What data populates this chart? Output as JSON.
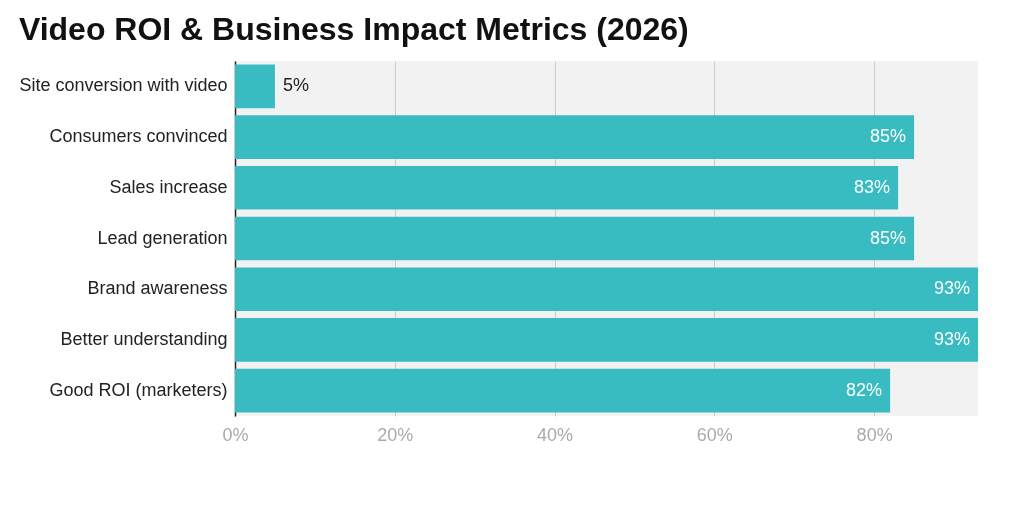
{
  "chart_data": {
    "type": "bar",
    "orientation": "horizontal",
    "title": "Video ROI & Business Impact Metrics (2026)",
    "categories": [
      "Site conversion with video",
      "Consumers convinced",
      "Sales increase",
      "Lead generation",
      "Brand awareness",
      "Better understanding",
      "Good ROI (marketers)"
    ],
    "values": [
      5,
      85,
      83,
      85,
      93,
      93,
      82
    ],
    "value_labels": [
      "5%",
      "85%",
      "83%",
      "85%",
      "93%",
      "93%",
      "82%"
    ],
    "color": "#38bcc2",
    "xlim": [
      0,
      93
    ],
    "xticks": [
      {
        "value": 0,
        "label": "0%"
      },
      {
        "value": 20,
        "label": "20%"
      },
      {
        "value": 40,
        "label": "40%"
      },
      {
        "value": 60,
        "label": "60%"
      },
      {
        "value": 80,
        "label": "80%"
      }
    ],
    "grid": "x"
  }
}
